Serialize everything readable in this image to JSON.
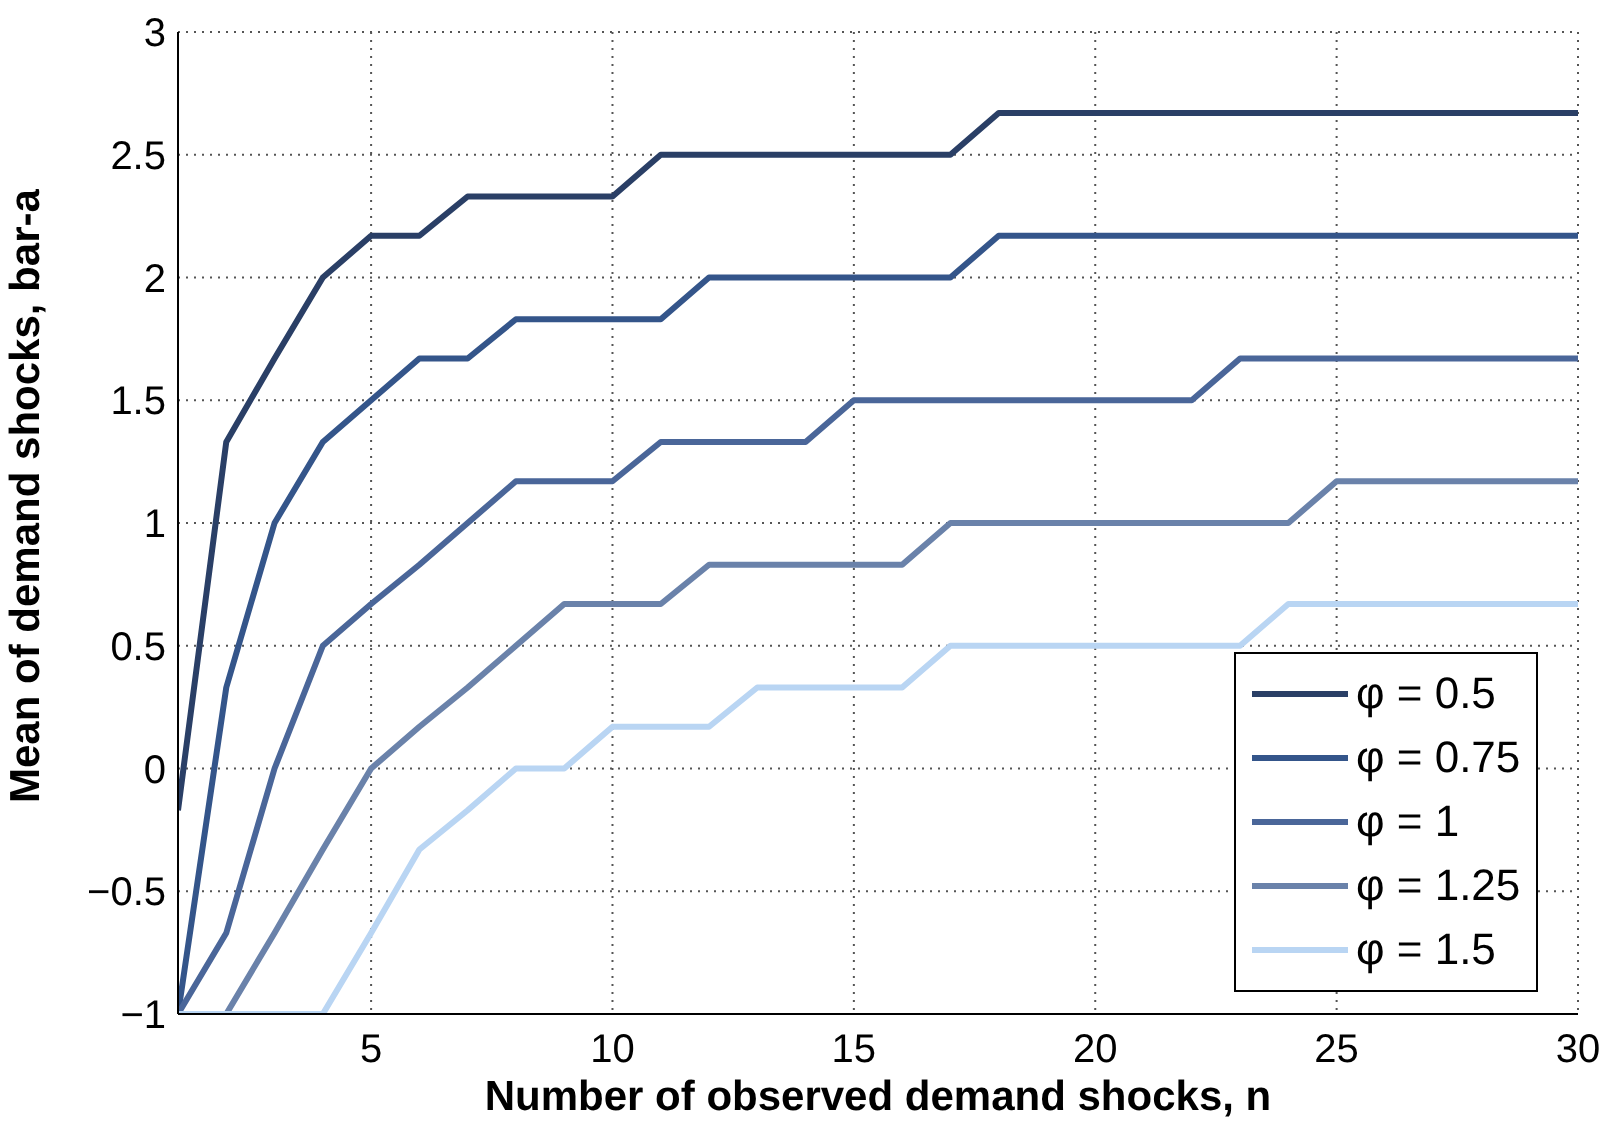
{
  "chart_data": {
    "type": "line",
    "xlabel": "Number of observed demand shocks, n",
    "ylabel": "Mean of demand shocks, bar-a",
    "x": [
      1,
      2,
      3,
      4,
      5,
      6,
      7,
      8,
      9,
      10,
      11,
      12,
      13,
      14,
      15,
      16,
      17,
      18,
      19,
      20,
      21,
      22,
      23,
      24,
      25,
      26,
      27,
      28,
      29,
      30
    ],
    "series": [
      {
        "name": "φ = 0.5",
        "color": "#2a3f66",
        "values": [
          -0.17,
          1.33,
          1.67,
          2,
          2.17,
          2.17,
          2.33,
          2.33,
          2.33,
          2.33,
          2.5,
          2.5,
          2.5,
          2.5,
          2.5,
          2.5,
          2.5,
          2.67,
          2.67,
          2.67,
          2.67,
          2.67,
          2.67,
          2.67,
          2.67,
          2.67,
          2.67,
          2.67,
          2.67,
          2.67
        ]
      },
      {
        "name": "φ = 0.75",
        "color": "#34558a",
        "values": [
          -1,
          0.33,
          1,
          1.33,
          1.5,
          1.67,
          1.67,
          1.83,
          1.83,
          1.83,
          1.83,
          2,
          2,
          2,
          2,
          2,
          2,
          2.17,
          2.17,
          2.17,
          2.17,
          2.17,
          2.17,
          2.17,
          2.17,
          2.17,
          2.17,
          2.17,
          2.17,
          2.17
        ]
      },
      {
        "name": "φ = 1",
        "color": "#4a6699",
        "values": [
          -1,
          -0.67,
          0,
          0.5,
          0.67,
          0.83,
          1,
          1.17,
          1.17,
          1.17,
          1.33,
          1.33,
          1.33,
          1.33,
          1.5,
          1.5,
          1.5,
          1.5,
          1.5,
          1.5,
          1.5,
          1.5,
          1.67,
          1.67,
          1.67,
          1.67,
          1.67,
          1.67,
          1.67,
          1.67
        ]
      },
      {
        "name": "φ = 1.25",
        "color": "#6a82aa",
        "values": [
          -1,
          -1,
          -0.67,
          -0.33,
          0,
          0.17,
          0.33,
          0.5,
          0.67,
          0.67,
          0.67,
          0.83,
          0.83,
          0.83,
          0.83,
          0.83,
          1,
          1,
          1,
          1,
          1,
          1,
          1,
          1,
          1.17,
          1.17,
          1.17,
          1.17,
          1.17,
          1.17
        ]
      },
      {
        "name": "φ = 1.5",
        "color": "#b9d5f3",
        "values": [
          -1,
          -1,
          -1,
          -1,
          -0.67,
          -0.33,
          -0.17,
          0,
          0,
          0.17,
          0.17,
          0.17,
          0.33,
          0.33,
          0.33,
          0.33,
          0.5,
          0.5,
          0.5,
          0.5,
          0.5,
          0.5,
          0.5,
          0.67,
          0.67,
          0.67,
          0.67,
          0.67,
          0.67,
          0.67
        ]
      }
    ],
    "xlim": [
      1,
      30
    ],
    "xticks": [
      5,
      10,
      15,
      20,
      25,
      30
    ],
    "ylim": [
      -1,
      3
    ],
    "yticks": [
      -1,
      -0.5,
      0,
      0.5,
      1,
      1.5,
      2,
      2.5,
      3
    ],
    "grid": true,
    "legend": "bottom right",
    "marker": "none",
    "line_style": "solid"
  }
}
